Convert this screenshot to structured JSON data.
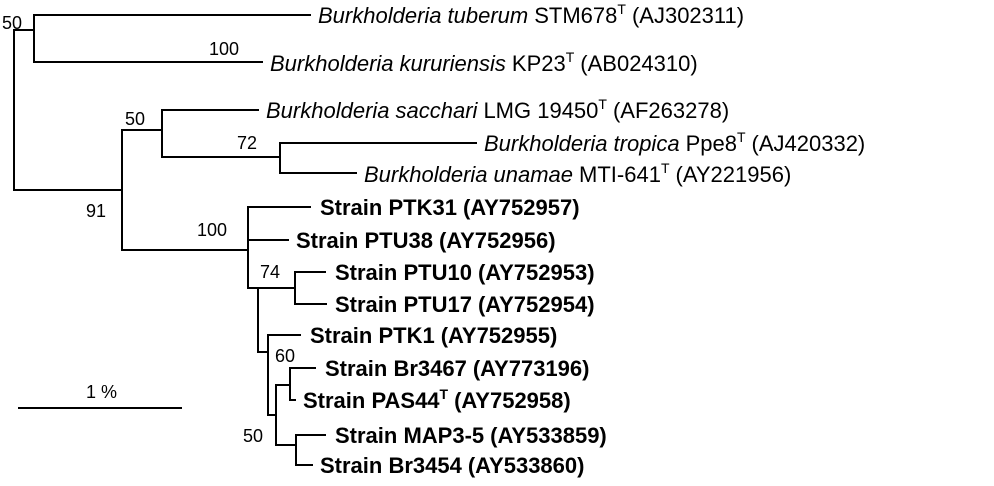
{
  "taxa": [
    {
      "id": "tuberum",
      "genus": "Burkholderia",
      "species": "tuberum",
      "strain": "STM678",
      "type_mark": "T",
      "accession": "(AJ302311)"
    },
    {
      "id": "kururiensis",
      "genus": "Burkholderia",
      "species": "kururiensis",
      "strain": "KP23",
      "type_mark": "T",
      "accession": "(AB024310)"
    },
    {
      "id": "sacchari",
      "genus": "Burkholderia",
      "species": "sacchari",
      "strain": "LMG 19450",
      "type_mark": "T",
      "accession": "(AF263278)"
    },
    {
      "id": "tropica",
      "genus": "Burkholderia",
      "species": "tropica",
      "strain": "Ppe8",
      "type_mark": "T",
      "accession": "(AJ420332)"
    },
    {
      "id": "unamae",
      "genus": "Burkholderia",
      "species": "unamae",
      "strain": "MTI-641",
      "type_mark": "T",
      "accession": "(AY221956)"
    },
    {
      "id": "ptk31",
      "label": "Strain PTK31",
      "accession": "(AY752957)"
    },
    {
      "id": "ptu38",
      "label": "Strain PTU38",
      "accession": "(AY752956)"
    },
    {
      "id": "ptu10",
      "label": "Strain PTU10",
      "accession": "(AY752953)"
    },
    {
      "id": "ptu17",
      "label": "Strain PTU17",
      "accession": "(AY752954)"
    },
    {
      "id": "ptk1",
      "label": "Strain PTK1",
      "accession": "(AY752955)"
    },
    {
      "id": "br3467",
      "label": "Strain Br3467",
      "accession": "(AY773196)"
    },
    {
      "id": "pas44",
      "label": "Strain PAS44",
      "type_mark": "T",
      "accession": "(AY752958)"
    },
    {
      "id": "map35",
      "label": "Strain MAP3-5",
      "accession": "(AY533859)"
    },
    {
      "id": "br3454",
      "label": "Strain Br3454",
      "accession": "(AY533860)"
    }
  ],
  "bootstrap": {
    "root_top": "50",
    "tuberum_kururiensis": "100",
    "lower_clade": "91",
    "sacchari_group": "50",
    "tropica_unamae": "72",
    "strain_clade": "100",
    "ptu10_ptu17": "74",
    "br3467_pas44": "60",
    "inner_strains": "50"
  },
  "scale_bar": {
    "label": "1 %"
  }
}
